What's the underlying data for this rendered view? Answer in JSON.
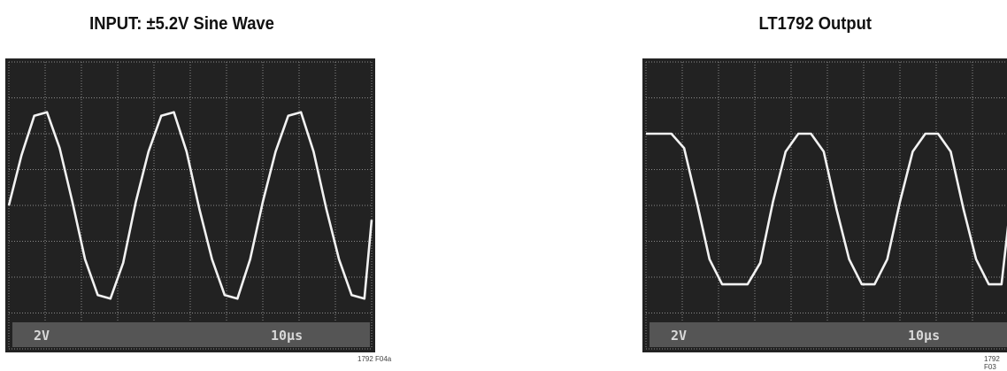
{
  "left_panel": {
    "title": "INPUT: ±5.2V Sine Wave",
    "scale_volts": "2V",
    "scale_time": "10μs",
    "figure_code": "1792 F04a"
  },
  "right_panel": {
    "title": "LT1792 Output",
    "scale_volts": "2V",
    "scale_time": "10μs",
    "figure_code": "1792 F03"
  },
  "colors": {
    "screen": "#222222",
    "grid": "#8a8a8a",
    "trace": "#f2f2f2",
    "readout_bar": "#555555"
  },
  "chart_data": [
    {
      "type": "line",
      "title": "INPUT: ±5.2V Sine Wave",
      "xlabel": "",
      "ylabel": "",
      "grid": true,
      "divisions": {
        "x": 10,
        "y": 8
      },
      "x_scale": "10μs",
      "y_scale": "2V",
      "xlim": [
        0,
        10
      ],
      "ylim": [
        -4,
        4
      ],
      "series": [
        {
          "x": [
            0,
            0.35,
            0.7,
            1.05,
            1.4,
            1.75,
            2.1,
            2.45,
            2.8,
            3.15,
            3.5,
            3.85,
            4.2,
            4.55,
            4.9,
            5.25,
            5.6,
            5.95,
            6.3,
            6.65,
            7.0,
            7.35,
            7.7,
            8.05,
            8.4,
            8.75,
            9.1,
            9.45,
            9.8,
            10
          ],
          "y": [
            0.0,
            1.4,
            2.5,
            2.6,
            1.6,
            0.1,
            -1.5,
            -2.5,
            -2.6,
            -1.6,
            0.1,
            1.5,
            2.5,
            2.6,
            1.5,
            -0.1,
            -1.5,
            -2.5,
            -2.6,
            -1.5,
            0.1,
            1.5,
            2.5,
            2.6,
            1.5,
            -0.1,
            -1.5,
            -2.5,
            -2.6,
            -0.4
          ]
        }
      ]
    },
    {
      "type": "line",
      "title": "LT1792 Output",
      "xlabel": "",
      "ylabel": "",
      "grid": true,
      "divisions": {
        "x": 10,
        "y": 8
      },
      "x_scale": "10μs",
      "y_scale": "2V",
      "xlim": [
        0,
        10
      ],
      "ylim": [
        -4,
        4
      ],
      "series": [
        {
          "x": [
            0,
            0.35,
            0.7,
            1.05,
            1.4,
            1.75,
            2.1,
            2.45,
            2.8,
            3.15,
            3.5,
            3.85,
            4.2,
            4.55,
            4.9,
            5.25,
            5.6,
            5.95,
            6.3,
            6.65,
            7.0,
            7.35,
            7.7,
            8.05,
            8.4,
            8.75,
            9.1,
            9.45,
            9.8,
            10
          ],
          "y": [
            2.0,
            2.0,
            2.0,
            1.6,
            0.1,
            -1.5,
            -2.2,
            -2.2,
            -2.2,
            -1.6,
            0.1,
            1.5,
            2.0,
            2.0,
            1.5,
            -0.1,
            -1.5,
            -2.2,
            -2.2,
            -1.5,
            0.1,
            1.5,
            2.0,
            2.0,
            1.5,
            -0.1,
            -1.5,
            -2.2,
            -2.2,
            -0.4
          ]
        }
      ]
    }
  ]
}
